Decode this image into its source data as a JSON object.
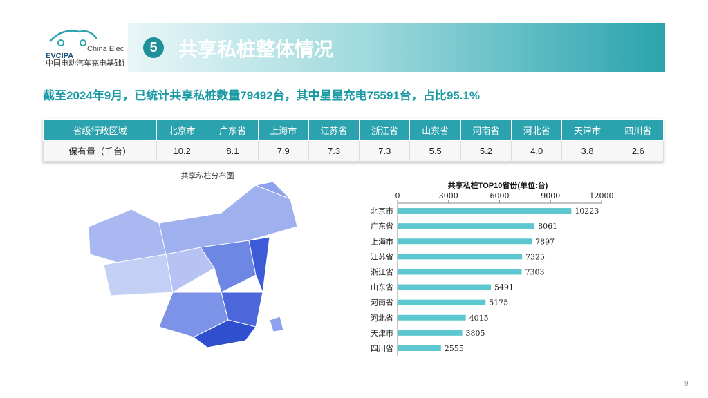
{
  "header": {
    "logo_name": "EVCIPA",
    "logo_english": "China Electric Vehicle Charging Infrastructure Promotion Alliance",
    "logo_chinese": "中国电动汽车充电基础设施促进联盟",
    "section_number": "5",
    "title": "共享私桩整体情况"
  },
  "subtitle": "截至2024年9月，已统计共享私桩数量79492台，其中星星充电75591台，占比95.1%",
  "table": {
    "header": [
      "省级行政区域",
      "北京市",
      "广东省",
      "上海市",
      "江苏省",
      "浙江省",
      "山东省",
      "河南省",
      "河北省",
      "天津市",
      "四川省"
    ],
    "rows": [
      [
        "保有量（千台）",
        "10.2",
        "8.1",
        "7.9",
        "7.3",
        "7.3",
        "5.5",
        "5.2",
        "4.0",
        "3.8",
        "2.6"
      ]
    ]
  },
  "map_title": "共享私桩分布图",
  "chart_data": {
    "type": "bar",
    "title": "共享私桩TOP10省份(单位:台)",
    "categories": [
      "北京市",
      "广东省",
      "上海市",
      "江苏省",
      "浙江省",
      "山东省",
      "河南省",
      "河北省",
      "天津市",
      "四川省"
    ],
    "values": [
      10223,
      8061,
      7897,
      7325,
      7303,
      5491,
      5175,
      4015,
      3805,
      2555
    ],
    "color": "#5cc7cf",
    "xlim": [
      0,
      12000
    ],
    "xticks": [
      0,
      3000,
      6000,
      9000,
      12000
    ]
  },
  "page_number": "9"
}
